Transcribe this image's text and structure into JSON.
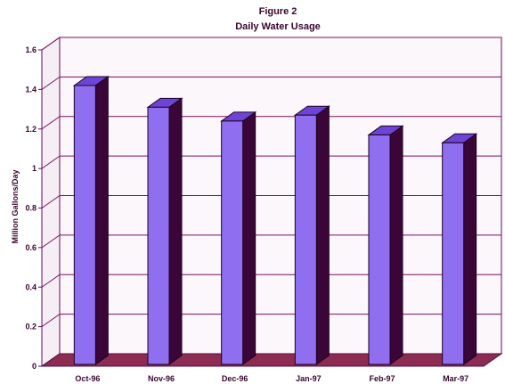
{
  "colors": {
    "bar_front": "#8f6ff0",
    "bar_top": "#6d45d6",
    "bar_side": "#3a0638",
    "grid": "#7a1060",
    "floor": "#8c2c52",
    "frame": "#6a0a55",
    "text": "#3a0630"
  },
  "chart_data": {
    "type": "bar",
    "title": "Figure 2",
    "subtitle": "Daily Water Usage",
    "xlabel": "",
    "ylabel": "Million Gallons/Day",
    "categories": [
      "Oct-96",
      "Nov-96",
      "Dec-96",
      "Jan-97",
      "Feb-97",
      "Mar-97"
    ],
    "values": [
      1.42,
      1.31,
      1.24,
      1.27,
      1.17,
      1.13
    ],
    "ylim": [
      0,
      1.6
    ],
    "yticks": [
      "0",
      "0.2",
      "0.4",
      "0.6",
      "0.8",
      "1",
      "1.2",
      "1.4",
      "1.6"
    ],
    "grid": true,
    "legend": "none"
  }
}
